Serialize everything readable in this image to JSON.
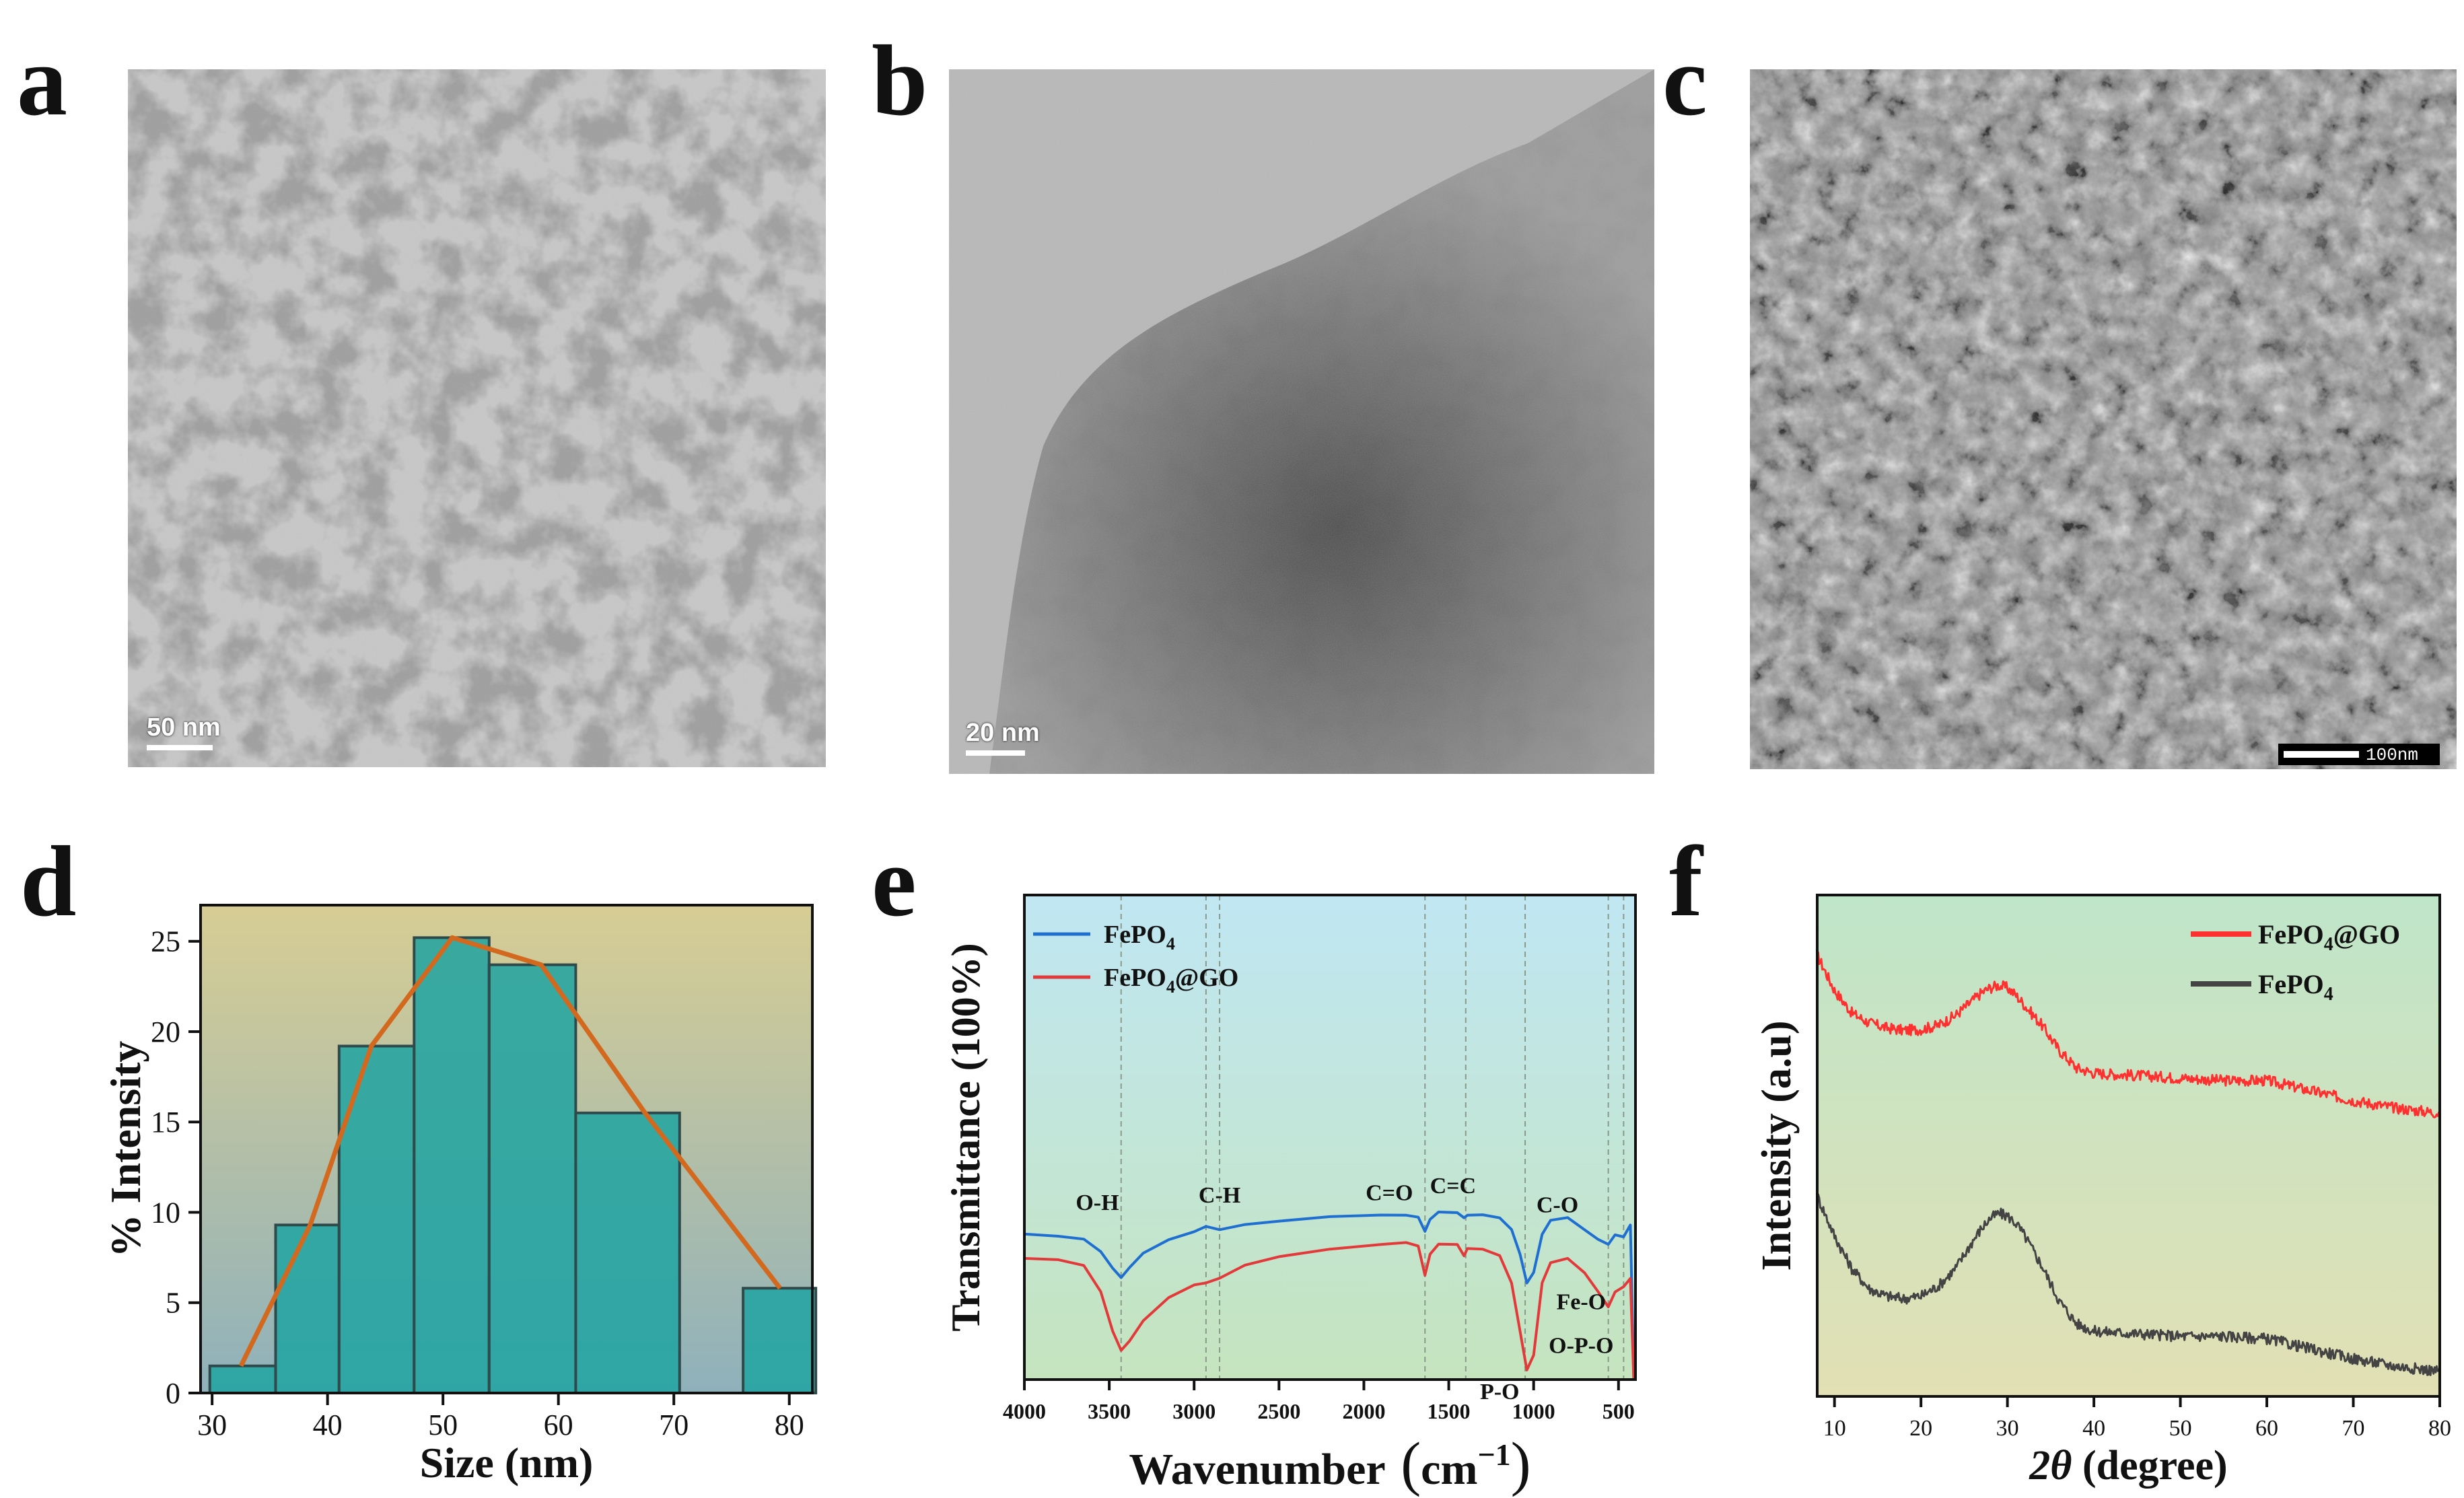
{
  "panels": {
    "a": {
      "label": "a",
      "scale_text": "50 nm"
    },
    "b": {
      "label": "b",
      "scale_text": "20 nm"
    },
    "c": {
      "label": "c",
      "scale_text": "100nm"
    },
    "d": {
      "label": "d"
    },
    "e": {
      "label": "e"
    },
    "f": {
      "label": "f"
    }
  },
  "chart_data": [
    {
      "panel": "d",
      "type": "bar",
      "xlabel": "Size (nm)",
      "ylabel": "% Intensity",
      "xlim": [
        29,
        82
      ],
      "ylim": [
        0,
        27
      ],
      "xticks": [
        30,
        40,
        50,
        60,
        70,
        80
      ],
      "yticks": [
        0,
        5,
        10,
        15,
        20,
        25
      ],
      "bars": [
        {
          "left": 29.8,
          "right": 35.5,
          "value": 1.5
        },
        {
          "left": 35.5,
          "right": 41.0,
          "value": 9.3
        },
        {
          "left": 41.0,
          "right": 47.5,
          "value": 19.2
        },
        {
          "left": 47.5,
          "right": 54.0,
          "value": 25.2
        },
        {
          "left": 54.0,
          "right": 61.5,
          "value": 23.7
        },
        {
          "left": 61.5,
          "right": 70.5,
          "value": 15.5
        },
        {
          "left": 70.5,
          "right": 76.0,
          "value": 0
        },
        {
          "left": 76.0,
          "right": 82.3,
          "value": 5.8
        }
      ],
      "line": {
        "x": [
          32.5,
          38.5,
          43.8,
          50.8,
          58.5,
          67.5,
          79.2
        ],
        "y": [
          1.5,
          9.3,
          19.2,
          25.2,
          23.7,
          15.5,
          5.8
        ]
      },
      "colors": {
        "bar": "#1fa3a1",
        "line": "#d2691e",
        "bg_top": "#d7cd94",
        "bg_bottom": "#8fb1bb"
      }
    },
    {
      "panel": "e",
      "type": "line",
      "xlabel": "Wavenumber",
      "xlabel_unit": "cm",
      "xlabel_exp": "−1",
      "ylabel": "Transmittance (100%)",
      "xlim": [
        4000,
        400
      ],
      "xticks": [
        4000,
        3500,
        3000,
        2500,
        2000,
        1500,
        1000,
        500
      ],
      "series": [
        {
          "name": "FePO",
          "name_sub": "4",
          "color": "#1f6fd1",
          "x": [
            4000,
            3800,
            3650,
            3550,
            3480,
            3430,
            3380,
            3300,
            3150,
            3000,
            2930,
            2850,
            2700,
            2500,
            2200,
            1900,
            1750,
            1680,
            1640,
            1610,
            1560,
            1450,
            1410,
            1390,
            1300,
            1200,
            1130,
            1080,
            1040,
            1000,
            950,
            900,
            800,
            700,
            620,
            560,
            520,
            470,
            430,
            410
          ],
          "y": [
            0.7,
            0.703,
            0.71,
            0.735,
            0.77,
            0.79,
            0.77,
            0.74,
            0.71,
            0.695,
            0.685,
            0.69,
            0.68,
            0.672,
            0.665,
            0.66,
            0.66,
            0.665,
            0.695,
            0.67,
            0.655,
            0.655,
            0.665,
            0.66,
            0.66,
            0.665,
            0.69,
            0.74,
            0.8,
            0.78,
            0.7,
            0.67,
            0.665,
            0.69,
            0.71,
            0.72,
            0.7,
            0.705,
            0.68,
            1.0
          ]
        },
        {
          "name": "FePO",
          "name_sub": "4",
          "name_suffix": "@GO",
          "color": "#e23a3a",
          "x": [
            4000,
            3800,
            3650,
            3550,
            3480,
            3430,
            3380,
            3300,
            3150,
            3000,
            2930,
            2850,
            2700,
            2500,
            2200,
            1900,
            1750,
            1680,
            1640,
            1610,
            1560,
            1450,
            1410,
            1390,
            1300,
            1200,
            1130,
            1080,
            1040,
            1000,
            950,
            900,
            800,
            700,
            620,
            560,
            520,
            470,
            430,
            410
          ],
          "y": [
            0.75,
            0.752,
            0.765,
            0.82,
            0.9,
            0.94,
            0.92,
            0.88,
            0.83,
            0.805,
            0.8,
            0.79,
            0.765,
            0.745,
            0.73,
            0.72,
            0.718,
            0.725,
            0.785,
            0.74,
            0.72,
            0.72,
            0.745,
            0.73,
            0.73,
            0.745,
            0.8,
            0.9,
            0.98,
            0.95,
            0.8,
            0.76,
            0.75,
            0.78,
            0.82,
            0.85,
            0.82,
            0.81,
            0.79,
            1.0
          ]
        }
      ],
      "annotations": [
        {
          "text": "O-H",
          "x": 3570,
          "y": 0.65
        },
        {
          "text": "C-H",
          "x": 2850,
          "y": 0.635
        },
        {
          "text": "C=O",
          "x": 1850,
          "y": 0.63
        },
        {
          "text": "C=C",
          "x": 1475,
          "y": 0.615
        },
        {
          "text": "C-O",
          "x": 860,
          "y": 0.655
        },
        {
          "text": "Fe-O",
          "x": 720,
          "y": 0.855
        },
        {
          "text": "O-P-O",
          "x": 720,
          "y": 0.945
        },
        {
          "text": "P-O",
          "x": 1200,
          "y": 1.04
        }
      ],
      "reference_lines": [
        3430,
        2930,
        2850,
        1640,
        1400,
        1050,
        560,
        470
      ],
      "colors": {
        "bg_top": "#c0e7f3",
        "bg_bottom": "#c5e4be"
      }
    },
    {
      "panel": "f",
      "type": "line",
      "xlabel": "2θ (degree)",
      "xlabel_theta": "2θ",
      "xlabel_rest": " (degree)",
      "ylabel": "Intensity (a.u)",
      "xlim": [
        8,
        80
      ],
      "xticks": [
        10,
        20,
        30,
        40,
        50,
        60,
        70,
        80
      ],
      "series": [
        {
          "name": "FePO",
          "name_sub": "4",
          "name_suffix": "@GO",
          "color": "#ff3030",
          "x": [
            8,
            10,
            12,
            14,
            16,
            18,
            20,
            22,
            24,
            26,
            27,
            28,
            29,
            30,
            31,
            32,
            34,
            36,
            38,
            40,
            45,
            50,
            55,
            60,
            65,
            70,
            75,
            80
          ],
          "y": [
            0.88,
            0.81,
            0.765,
            0.745,
            0.735,
            0.73,
            0.732,
            0.74,
            0.76,
            0.79,
            0.805,
            0.815,
            0.82,
            0.815,
            0.8,
            0.78,
            0.74,
            0.69,
            0.655,
            0.645,
            0.64,
            0.635,
            0.63,
            0.63,
            0.61,
            0.59,
            0.575,
            0.565
          ]
        },
        {
          "name": "FePO",
          "name_sub": "4",
          "color": "#444444",
          "x": [
            8,
            10,
            12,
            14,
            16,
            18,
            20,
            22,
            24,
            26,
            27,
            28,
            29,
            30,
            31,
            32,
            34,
            36,
            38,
            40,
            45,
            50,
            55,
            60,
            65,
            70,
            75,
            80
          ],
          "y": [
            0.4,
            0.32,
            0.255,
            0.215,
            0.2,
            0.195,
            0.2,
            0.22,
            0.255,
            0.31,
            0.335,
            0.355,
            0.365,
            0.36,
            0.345,
            0.32,
            0.26,
            0.19,
            0.145,
            0.13,
            0.125,
            0.12,
            0.12,
            0.115,
            0.095,
            0.075,
            0.06,
            0.05
          ]
        }
      ],
      "colors": {
        "bg_top": "#bfe5c9",
        "bg_bottom": "#e2e0b4"
      }
    }
  ]
}
